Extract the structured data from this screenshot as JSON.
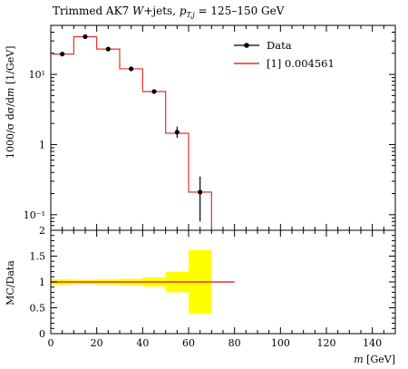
{
  "chart_data": [
    {
      "type": "line",
      "title": "Trimmed AK7 W+jets, p_{T,j} = 125–150 GeV",
      "title_parts": {
        "prefix": "Trimmed AK7 ",
        "w": "W",
        "mid": "+jets, ",
        "pt": "p",
        "pt_sub": "T,j",
        "suffix": " = 125–150 GeV"
      },
      "ylabel": "1000/σ dσ/dm [1/GeV]",
      "ylabel_parts": {
        "main": "1000/σ dσ/d",
        "m": "m",
        "unit": " [1/GeV]"
      },
      "yscale": "log",
      "ylim": [
        0.06,
        50
      ],
      "yticks": [
        {
          "label": "10⁻¹",
          "value": 0.1
        },
        {
          "label": "1",
          "value": 1
        },
        {
          "label": "10¹",
          "value": 10
        }
      ],
      "xlim": [
        0,
        150
      ],
      "legend_position": "top-right",
      "legend": [
        {
          "label": "Data",
          "kind": "marker",
          "color": "#000000"
        },
        {
          "label": "[1] 0.004561",
          "kind": "line",
          "color": "#e8302a"
        }
      ],
      "series": [
        {
          "name": "Data",
          "x": [
            5,
            15,
            25,
            35,
            45,
            55,
            65
          ],
          "y": [
            19.5,
            34.5,
            23.0,
            12.0,
            5.7,
            1.5,
            0.21
          ],
          "yerr_low": [
            0.3,
            0.5,
            0.4,
            0.3,
            0.3,
            0.25,
            0.13
          ],
          "yerr_high": [
            0.3,
            0.5,
            0.4,
            0.3,
            0.3,
            0.3,
            0.14
          ]
        },
        {
          "name": "[1] 0.004561",
          "bin_edges": [
            0,
            10,
            20,
            30,
            40,
            50,
            60,
            70
          ],
          "values": [
            19.5,
            34.5,
            23.0,
            12.0,
            5.7,
            1.45,
            0.21
          ]
        }
      ]
    },
    {
      "type": "line",
      "ylabel": "MC/Data",
      "xlabel": "m [GeV]",
      "xlabel_parts": {
        "m": "m",
        "unit": " [GeV]"
      },
      "ylim": [
        0,
        2
      ],
      "yticks": [
        "0",
        "0.5",
        "1",
        "1.5",
        "2"
      ],
      "ytick_values": [
        0,
        0.5,
        1,
        1.5,
        2
      ],
      "xlim": [
        0,
        150
      ],
      "xticks": [
        "0",
        "20",
        "40",
        "60",
        "80",
        "100",
        "120",
        "140"
      ],
      "xtick_values": [
        0,
        20,
        40,
        60,
        80,
        100,
        120,
        140
      ],
      "band_color": "#ffff00",
      "line_color": "#e8302a",
      "band": {
        "bin_edges": [
          0,
          10,
          20,
          30,
          40,
          50,
          60,
          70
        ],
        "low": [
          0.95,
          0.96,
          0.95,
          0.94,
          0.91,
          0.8,
          0.38
        ],
        "high": [
          1.05,
          1.04,
          1.05,
          1.06,
          1.09,
          1.2,
          1.62
        ]
      },
      "ratio_line": {
        "x": [
          0,
          80
        ],
        "y": [
          1,
          1
        ]
      }
    }
  ]
}
